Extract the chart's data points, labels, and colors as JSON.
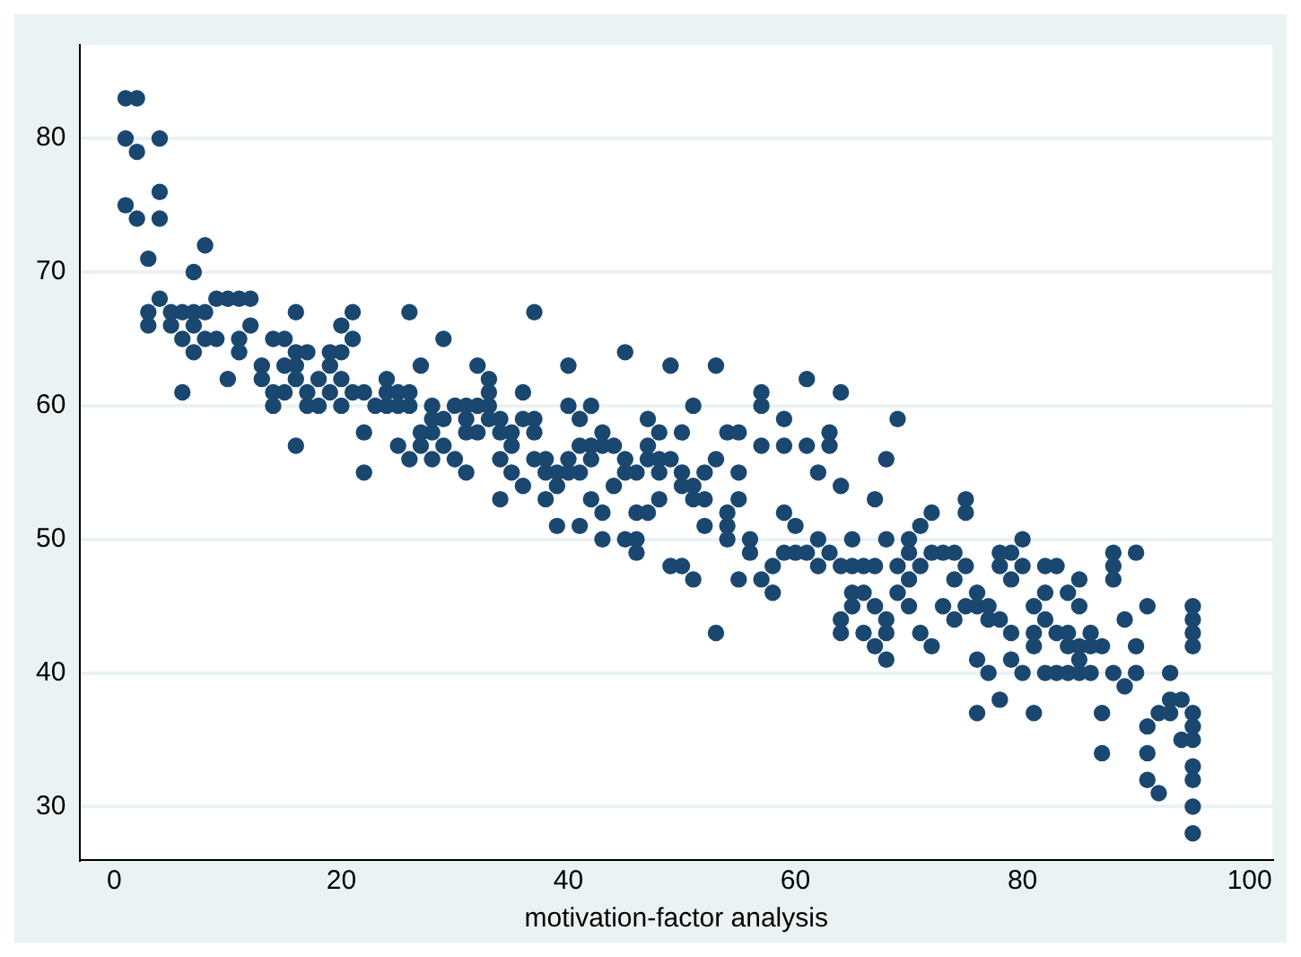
{
  "chart_data": {
    "type": "scatter",
    "xlabel": "motivation-factor analysis",
    "xlim": [
      -3,
      102
    ],
    "ylim": [
      26,
      87
    ],
    "xticks": [
      0,
      20,
      40,
      60,
      80,
      100
    ],
    "yticks": [
      30,
      40,
      50,
      60,
      70,
      80
    ],
    "grid": "y",
    "marker": "circle",
    "series": [
      {
        "color": "#1a476f",
        "x": [
          1,
          1,
          1,
          2,
          2,
          2,
          3,
          3,
          3,
          4,
          4,
          4,
          4,
          5,
          5,
          6,
          6,
          6,
          7,
          7,
          7,
          7,
          8,
          8,
          8,
          9,
          9,
          10,
          10,
          11,
          11,
          11,
          12,
          12,
          13,
          13,
          14,
          14,
          14,
          15,
          15,
          15,
          16,
          16,
          16,
          16,
          16,
          17,
          17,
          17,
          18,
          18,
          19,
          19,
          19,
          20,
          20,
          20,
          20,
          21,
          21,
          21,
          22,
          22,
          22,
          23,
          24,
          24,
          24,
          25,
          25,
          25,
          26,
          26,
          26,
          26,
          27,
          27,
          27,
          28,
          28,
          28,
          28,
          29,
          29,
          29,
          30,
          30,
          31,
          31,
          31,
          31,
          32,
          32,
          32,
          33,
          33,
          33,
          33,
          34,
          34,
          34,
          34,
          35,
          35,
          35,
          36,
          36,
          36,
          37,
          37,
          37,
          37,
          38,
          38,
          38,
          39,
          39,
          39,
          40,
          40,
          40,
          40,
          41,
          41,
          41,
          41,
          42,
          42,
          42,
          42,
          43,
          43,
          43,
          43,
          44,
          44,
          45,
          45,
          45,
          45,
          46,
          46,
          46,
          46,
          47,
          47,
          47,
          47,
          48,
          48,
          48,
          48,
          49,
          49,
          49,
          50,
          50,
          50,
          50,
          51,
          51,
          51,
          51,
          52,
          52,
          52,
          53,
          53,
          53,
          54,
          54,
          54,
          54,
          55,
          55,
          55,
          55,
          56,
          56,
          57,
          57,
          57,
          57,
          58,
          58,
          59,
          59,
          59,
          59,
          60,
          60,
          61,
          61,
          61,
          62,
          62,
          62,
          63,
          63,
          63,
          64,
          64,
          64,
          64,
          64,
          65,
          65,
          65,
          65,
          66,
          66,
          66,
          67,
          67,
          67,
          67,
          68,
          68,
          68,
          68,
          68,
          69,
          69,
          69,
          70,
          70,
          70,
          70,
          71,
          71,
          71,
          72,
          72,
          72,
          73,
          73,
          74,
          74,
          74,
          75,
          75,
          75,
          75,
          76,
          76,
          76,
          76,
          77,
          77,
          77,
          78,
          78,
          78,
          78,
          79,
          79,
          79,
          79,
          80,
          80,
          80,
          81,
          81,
          81,
          81,
          82,
          82,
          82,
          82,
          83,
          83,
          83,
          84,
          84,
          84,
          84,
          85,
          85,
          85,
          85,
          85,
          86,
          86,
          86,
          87,
          87,
          87,
          88,
          88,
          88,
          88,
          89,
          89,
          90,
          90,
          90,
          91,
          91,
          91,
          91,
          92,
          92,
          93,
          93,
          93,
          94,
          94,
          95,
          95,
          95,
          95,
          95,
          95,
          95,
          95,
          95,
          95,
          95
        ],
        "values": [
          83,
          80,
          75,
          83,
          79,
          74,
          71,
          67,
          66,
          80,
          76,
          74,
          68,
          67,
          66,
          67,
          65,
          61,
          70,
          67,
          66,
          64,
          72,
          67,
          65,
          68,
          65,
          68,
          62,
          68,
          65,
          64,
          68,
          66,
          63,
          62,
          65,
          61,
          60,
          65,
          63,
          61,
          67,
          64,
          63,
          62,
          57,
          64,
          61,
          60,
          62,
          60,
          64,
          63,
          61,
          66,
          64,
          62,
          60,
          67,
          65,
          61,
          61,
          58,
          55,
          60,
          62,
          61,
          60,
          61,
          60,
          57,
          67,
          61,
          60,
          56,
          63,
          58,
          57,
          60,
          59,
          58,
          56,
          65,
          59,
          57,
          60,
          56,
          60,
          59,
          58,
          55,
          63,
          60,
          58,
          62,
          61,
          60,
          59,
          59,
          58,
          56,
          53,
          58,
          57,
          55,
          61,
          59,
          54,
          67,
          59,
          58,
          56,
          56,
          55,
          53,
          55,
          54,
          51,
          63,
          60,
          56,
          55,
          59,
          57,
          55,
          51,
          60,
          57,
          56,
          53,
          58,
          57,
          52,
          50,
          57,
          54,
          64,
          56,
          55,
          50,
          55,
          52,
          50,
          49,
          59,
          57,
          56,
          52,
          58,
          56,
          55,
          53,
          63,
          56,
          48,
          58,
          55,
          54,
          48,
          60,
          54,
          53,
          47,
          55,
          53,
          51,
          63,
          56,
          43,
          58,
          52,
          51,
          50,
          58,
          55,
          53,
          47,
          50,
          49,
          61,
          60,
          57,
          47,
          48,
          46,
          59,
          57,
          52,
          49,
          51,
          49,
          62,
          57,
          49,
          55,
          50,
          48,
          58,
          57,
          49,
          61,
          54,
          48,
          44,
          43,
          50,
          48,
          46,
          45,
          48,
          46,
          43,
          53,
          48,
          45,
          42,
          56,
          50,
          44,
          43,
          41,
          59,
          48,
          46,
          50,
          49,
          47,
          45,
          51,
          48,
          43,
          52,
          49,
          42,
          49,
          45,
          49,
          47,
          44,
          53,
          52,
          48,
          45,
          46,
          45,
          41,
          37,
          45,
          44,
          40,
          49,
          48,
          44,
          38,
          49,
          47,
          43,
          41,
          50,
          48,
          40,
          45,
          43,
          42,
          37,
          48,
          46,
          44,
          40,
          48,
          43,
          40,
          46,
          43,
          42,
          40,
          47,
          45,
          42,
          41,
          40,
          43,
          42,
          40,
          42,
          37,
          34,
          49,
          48,
          47,
          40,
          44,
          39,
          49,
          42,
          40,
          45,
          36,
          34,
          32,
          37,
          31,
          40,
          38,
          37,
          38,
          35,
          45,
          44,
          43,
          42,
          37,
          36,
          35,
          33,
          32,
          30,
          28
        ]
      }
    ]
  }
}
